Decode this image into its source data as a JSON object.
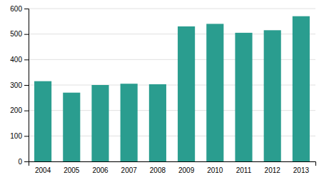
{
  "chart_data": {
    "type": "bar",
    "categories": [
      "2004",
      "2005",
      "2006",
      "2007",
      "2008",
      "2009",
      "2010",
      "2011",
      "2012",
      "2013"
    ],
    "values": [
      315,
      270,
      300,
      305,
      303,
      530,
      540,
      505,
      515,
      570
    ],
    "color": "#2a9d8f",
    "ylim": [
      0,
      600
    ],
    "yticks": [
      0,
      100,
      200,
      300,
      400,
      500,
      600
    ],
    "grid": true
  }
}
